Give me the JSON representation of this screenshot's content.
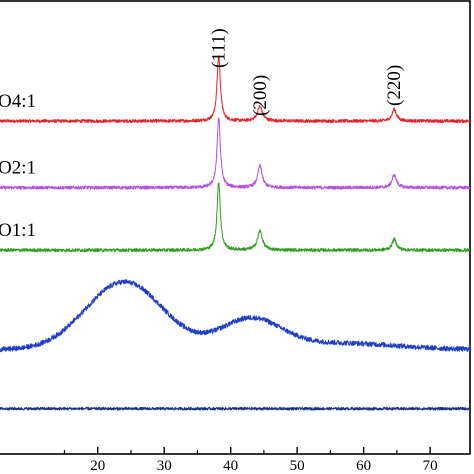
{
  "chart_data": {
    "type": "line",
    "xlim": [
      5,
      76
    ],
    "ylim": [
      0,
      100
    ],
    "x_ticks": [
      20,
      30,
      40,
      50,
      60,
      70
    ],
    "series": [
      {
        "name": "O4:1",
        "color": "#e8202a",
        "baseline": 73.5,
        "noise": 0.35,
        "features": [
          {
            "x": 38.2,
            "height": 14.5,
            "width": 0.3
          },
          {
            "x": 44.4,
            "height": 3.2,
            "width": 0.45
          },
          {
            "x": 64.6,
            "height": 2.6,
            "width": 0.4
          }
        ]
      },
      {
        "name": "O2:1",
        "color": "#b44fe0",
        "baseline": 58.8,
        "noise": 0.35,
        "features": [
          {
            "x": 38.2,
            "height": 15.5,
            "width": 0.3
          },
          {
            "x": 44.4,
            "height": 4.8,
            "width": 0.4
          },
          {
            "x": 64.6,
            "height": 2.8,
            "width": 0.4
          }
        ]
      },
      {
        "name": "O1:1",
        "color": "#2f9e1e",
        "baseline": 45.0,
        "noise": 0.35,
        "features": [
          {
            "x": 38.2,
            "height": 15.0,
            "width": 0.3
          },
          {
            "x": 44.4,
            "height": 4.2,
            "width": 0.45
          },
          {
            "x": 64.6,
            "height": 2.4,
            "width": 0.4
          }
        ]
      },
      {
        "name": "",
        "color": "#1f3ec8",
        "baseline": 23.0,
        "noise": 0.55,
        "features": [
          {
            "x": 24.0,
            "height": 15.0,
            "width": 5.8
          },
          {
            "x": 43.0,
            "height": 6.5,
            "width": 4.5
          },
          {
            "x": 56.0,
            "height": 1.5,
            "width": 9.0
          }
        ]
      },
      {
        "name": "",
        "color": "#1a2f8a",
        "baseline": 10.0,
        "noise": 0.3,
        "features": []
      }
    ],
    "peak_labels": [
      {
        "text": "(111)",
        "x": 38.2
      },
      {
        "text": "(200)",
        "x": 44.4
      },
      {
        "text": "(220)",
        "x": 64.6
      }
    ]
  }
}
